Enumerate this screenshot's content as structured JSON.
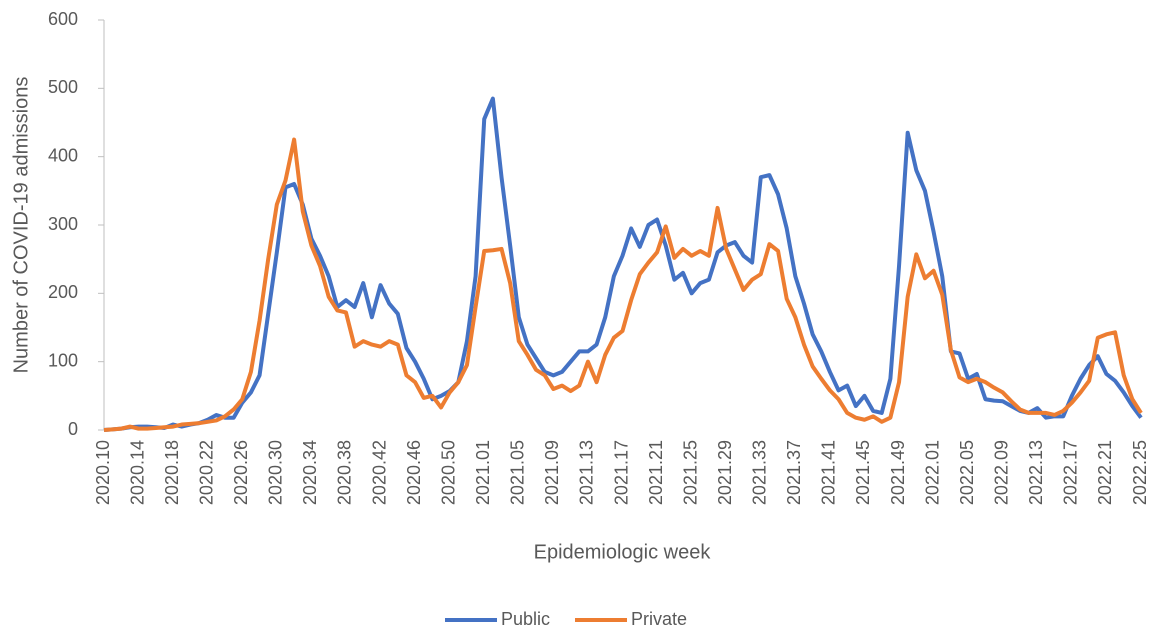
{
  "chart_data": {
    "type": "line",
    "y_label": "Number of COVID-19 admissions",
    "x_label": "Epidemiologic week",
    "categories": [
      "2020.10",
      null,
      null,
      null,
      "2020.14",
      null,
      null,
      null,
      "2020.18",
      null,
      null,
      null,
      "2020.22",
      null,
      null,
      null,
      "2020.26",
      null,
      null,
      null,
      "2020.30",
      null,
      null,
      null,
      "2020.34",
      null,
      null,
      null,
      "2020.38",
      null,
      null,
      null,
      "2020.42",
      null,
      null,
      null,
      "2020.46",
      null,
      null,
      null,
      "2020.50",
      null,
      null,
      null,
      "2021.01",
      null,
      null,
      null,
      "2021.05",
      null,
      null,
      null,
      "2021.09",
      null,
      null,
      null,
      "2021.13",
      null,
      null,
      null,
      "2021.17",
      null,
      null,
      null,
      "2021.21",
      null,
      null,
      null,
      "2021.25",
      null,
      null,
      null,
      "2021.29",
      null,
      null,
      null,
      "2021.33",
      null,
      null,
      null,
      "2021.37",
      null,
      null,
      null,
      "2021.41",
      null,
      null,
      null,
      "2021.45",
      null,
      null,
      null,
      "2021.49",
      null,
      null,
      null,
      "2022.01",
      null,
      null,
      null,
      "2022.05",
      null,
      null,
      null,
      "2022.09",
      null,
      null,
      null,
      "2022.13",
      null,
      null,
      null,
      "2022.17",
      null,
      null,
      null,
      "2022.21",
      null,
      null,
      null,
      "2022.25"
    ],
    "series": [
      {
        "name": "Public",
        "color": "#4472c4",
        "values": [
          0,
          1,
          2,
          4,
          5,
          5,
          4,
          3,
          8,
          5,
          8,
          10,
          15,
          22,
          18,
          18,
          40,
          55,
          80,
          170,
          260,
          355,
          360,
          330,
          280,
          255,
          225,
          180,
          190,
          180,
          215,
          165,
          212,
          185,
          170,
          120,
          100,
          75,
          45,
          50,
          57,
          70,
          130,
          225,
          455,
          485,
          370,
          270,
          165,
          125,
          105,
          85,
          80,
          85,
          100,
          115,
          115,
          125,
          165,
          225,
          255,
          295,
          268,
          300,
          308,
          270,
          220,
          230,
          200,
          215,
          220,
          260,
          270,
          275,
          255,
          245,
          370,
          373,
          345,
          295,
          225,
          185,
          140,
          115,
          85,
          58,
          65,
          35,
          50,
          28,
          25,
          75,
          240,
          435,
          380,
          350,
          290,
          225,
          115,
          112,
          75,
          82,
          45,
          43,
          42,
          35,
          28,
          25,
          32,
          18,
          20,
          20,
          50,
          75,
          95,
          108,
          82,
          72,
          55,
          35,
          18
        ]
      },
      {
        "name": "Private",
        "color": "#ed7d31",
        "values": [
          0,
          1,
          2,
          5,
          2,
          2,
          3,
          4,
          5,
          8,
          9,
          10,
          12,
          14,
          20,
          30,
          45,
          85,
          160,
          250,
          330,
          365,
          425,
          320,
          270,
          240,
          195,
          175,
          172,
          122,
          130,
          125,
          122,
          130,
          125,
          80,
          70,
          47,
          50,
          33,
          55,
          70,
          95,
          180,
          262,
          263,
          265,
          215,
          130,
          110,
          88,
          80,
          60,
          65,
          57,
          65,
          100,
          70,
          110,
          135,
          145,
          190,
          228,
          245,
          260,
          298,
          252,
          265,
          255,
          262,
          255,
          325,
          265,
          235,
          205,
          220,
          228,
          272,
          262,
          192,
          165,
          125,
          93,
          75,
          58,
          45,
          25,
          18,
          15,
          20,
          12,
          18,
          70,
          195,
          257,
          222,
          233,
          198,
          117,
          77,
          70,
          75,
          70,
          62,
          55,
          42,
          30,
          25,
          25,
          25,
          22,
          28,
          40,
          55,
          72,
          135,
          140,
          143,
          80,
          45,
          25
        ]
      }
    ],
    "ylim": [
      0,
      600
    ],
    "yticks": [
      0,
      100,
      200,
      300,
      400,
      500,
      600
    ],
    "grid": false,
    "legend": "bottom"
  }
}
